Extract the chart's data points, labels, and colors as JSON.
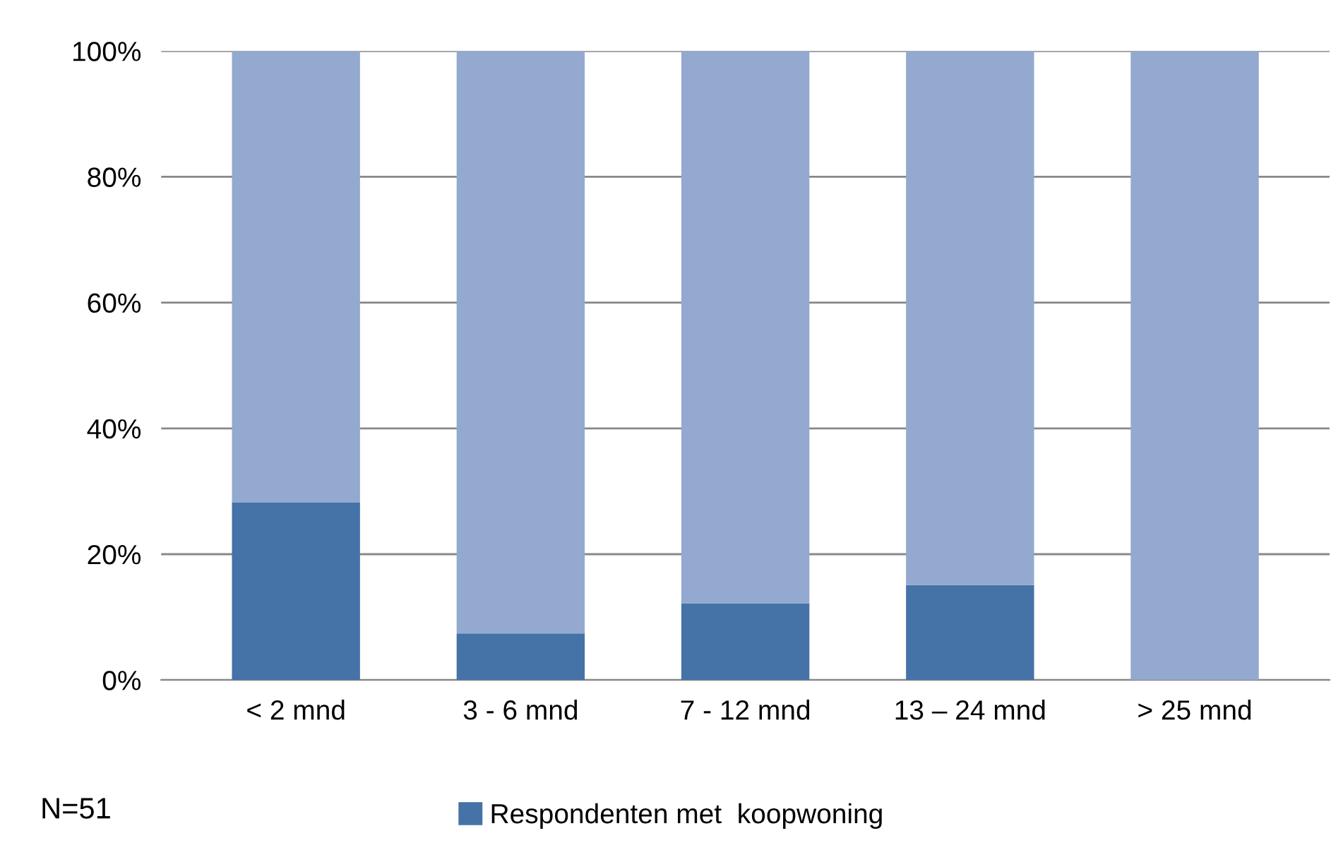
{
  "chart_data": {
    "type": "bar",
    "stacked": true,
    "categories": [
      "< 2 mnd",
      "3 - 6 mnd",
      "7 - 12 mnd",
      "13 – 24 mnd",
      "> 25 mnd"
    ],
    "series": [
      {
        "name": "Respondenten met  koopwoning",
        "color": "#4572a7",
        "values": [
          28.2,
          7.4,
          12.2,
          15.1,
          0
        ]
      },
      {
        "color": "#93a9cf",
        "values": [
          71.8,
          92.6,
          87.8,
          84.9,
          100
        ]
      }
    ],
    "ylim": [
      0,
      100
    ],
    "yticks": [
      {
        "value": 0,
        "label": "0%"
      },
      {
        "value": 20,
        "label": "20%"
      },
      {
        "value": 40,
        "label": "40%"
      },
      {
        "value": 60,
        "label": "60%"
      },
      {
        "value": 80,
        "label": "80%"
      },
      {
        "value": 100,
        "label": "100%"
      }
    ],
    "grid": "y",
    "legend": "bottom",
    "annotations": [
      "N=51"
    ]
  }
}
